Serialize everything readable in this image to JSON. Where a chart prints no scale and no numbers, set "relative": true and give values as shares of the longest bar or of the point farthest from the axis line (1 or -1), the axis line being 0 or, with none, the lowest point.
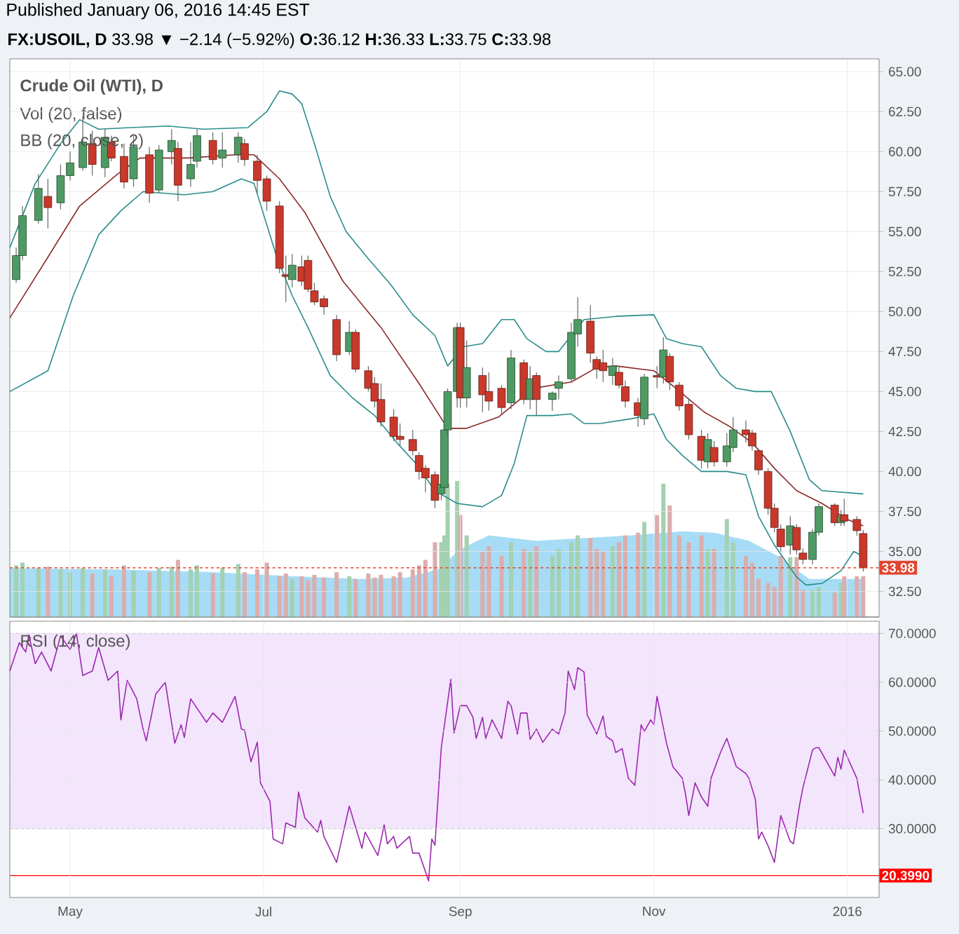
{
  "chart_data": [
    {
      "type": "candlestick",
      "title": "Published January 06, 2016 14:45 EST",
      "subtitle": "**FX:USOIL, D** 33.98 ▼ −2.14 (−5.92%) **O:**36.12 **H:**36.33 **L:**33.75 **C:**33.98",
      "x": [
        "2015-04-14",
        "2015-04-16",
        "2015-04-21",
        "2015-04-24",
        "2015-04-28",
        "2015-05-01",
        "2015-05-05",
        "2015-05-08",
        "2015-05-12",
        "2015-05-14",
        "2015-05-18",
        "2015-05-21",
        "2015-05-26",
        "2015-05-29",
        "2015-06-02",
        "2015-06-04",
        "2015-06-08",
        "2015-06-10",
        "2015-06-15",
        "2015-06-18",
        "2015-06-23",
        "2015-06-25",
        "2015-06-29",
        "2015-07-02",
        "2015-07-06",
        "2015-07-08",
        "2015-07-10",
        "2015-07-13",
        "2015-07-15",
        "2015-07-17",
        "2015-07-20",
        "2015-07-24",
        "2015-07-28",
        "2015-07-30",
        "2015-08-03",
        "2015-08-05",
        "2015-08-07",
        "2015-08-11",
        "2015-08-13",
        "2015-08-17",
        "2015-08-19",
        "2015-08-21",
        "2015-08-24",
        "2015-08-26",
        "2015-08-27",
        "2015-08-28",
        "2015-08-31",
        "2015-09-01",
        "2015-09-03",
        "2015-09-08",
        "2015-09-10",
        "2015-09-14",
        "2015-09-17",
        "2015-09-21",
        "2015-09-23",
        "2015-09-25",
        "2015-09-30",
        "2015-10-02",
        "2015-10-06",
        "2015-10-08",
        "2015-10-12",
        "2015-10-14",
        "2015-10-16",
        "2015-10-19",
        "2015-10-21",
        "2015-10-23",
        "2015-10-27",
        "2015-10-29",
        "2015-11-02",
        "2015-11-04",
        "2015-11-06",
        "2015-11-09",
        "2015-11-12",
        "2015-11-16",
        "2015-11-18",
        "2015-11-20",
        "2015-11-24",
        "2015-11-26",
        "2015-11-30",
        "2015-12-02",
        "2015-12-04",
        "2015-12-07",
        "2015-12-09",
        "2015-12-11",
        "2015-12-14",
        "2015-12-16",
        "2015-12-18",
        "2015-12-21",
        "2015-12-23",
        "2015-12-28",
        "2015-12-30",
        "2015-12-31",
        "2016-01-04",
        "2016-01-06"
      ],
      "ohlc": [
        [
          52.0,
          54.0,
          51.8,
          53.5
        ],
        [
          53.5,
          56.6,
          53.2,
          56.0
        ],
        [
          55.7,
          58.6,
          55.5,
          57.7
        ],
        [
          57.2,
          58.3,
          55.2,
          56.5
        ],
        [
          56.8,
          59.2,
          56.4,
          58.5
        ],
        [
          58.5,
          60.0,
          58.2,
          59.3
        ],
        [
          59.0,
          62.2,
          58.8,
          60.6
        ],
        [
          60.5,
          61.3,
          58.5,
          59.2
        ],
        [
          59.0,
          61.4,
          58.4,
          60.9
        ],
        [
          60.6,
          61.0,
          59.4,
          59.6
        ],
        [
          59.7,
          60.5,
          57.7,
          58.1
        ],
        [
          58.3,
          61.0,
          57.8,
          60.3
        ],
        [
          59.8,
          60.3,
          56.8,
          57.4
        ],
        [
          57.6,
          60.4,
          57.4,
          60.1
        ],
        [
          60.0,
          61.4,
          59.2,
          60.7
        ],
        [
          60.2,
          60.6,
          56.9,
          57.9
        ],
        [
          58.3,
          60.6,
          57.8,
          59.2
        ],
        [
          59.4,
          61.4,
          59.0,
          61.0
        ],
        [
          60.7,
          61.2,
          59.2,
          59.5
        ],
        [
          59.6,
          61.2,
          59.0,
          60.1
        ],
        [
          59.8,
          61.2,
          59.3,
          60.9
        ],
        [
          60.5,
          60.8,
          59.1,
          59.5
        ],
        [
          59.4,
          59.8,
          57.4,
          58.2
        ],
        [
          58.3,
          58.5,
          56.3,
          56.9
        ],
        [
          56.6,
          56.9,
          52.4,
          52.7
        ],
        [
          52.3,
          53.5,
          50.6,
          52.2
        ],
        [
          52.0,
          53.6,
          51.5,
          52.9
        ],
        [
          52.8,
          53.5,
          51.6,
          51.9
        ],
        [
          53.2,
          53.5,
          51.2,
          51.4
        ],
        [
          51.3,
          51.8,
          50.4,
          50.6
        ],
        [
          50.8,
          51.0,
          49.8,
          50.3
        ],
        [
          49.5,
          49.8,
          46.9,
          47.3
        ],
        [
          47.5,
          49.4,
          47.3,
          48.7
        ],
        [
          48.7,
          48.9,
          46.2,
          46.4
        ],
        [
          46.3,
          46.6,
          45.0,
          45.2
        ],
        [
          45.5,
          45.9,
          44.0,
          44.4
        ],
        [
          44.5,
          45.5,
          42.8,
          43.1
        ],
        [
          43.4,
          43.9,
          41.9,
          42.2
        ],
        [
          42.2,
          43.0,
          41.6,
          42.0
        ],
        [
          42.0,
          42.6,
          41.0,
          41.3
        ],
        [
          41.0,
          41.2,
          39.5,
          40.0
        ],
        [
          40.2,
          40.4,
          38.7,
          39.6
        ],
        [
          39.8,
          40.0,
          37.7,
          38.2
        ],
        [
          38.6,
          39.6,
          38.2,
          39.2
        ],
        [
          39.0,
          43.0,
          38.8,
          42.6
        ],
        [
          42.6,
          45.2,
          42.2,
          45.0
        ],
        [
          45.0,
          49.3,
          44.0,
          49.0
        ],
        [
          49.0,
          49.3,
          44.0,
          44.6
        ],
        [
          44.6,
          48.2,
          44.0,
          46.5
        ],
        [
          46.0,
          46.5,
          43.7,
          44.8
        ],
        [
          45.0,
          46.2,
          43.8,
          44.4
        ],
        [
          45.2,
          45.4,
          43.6,
          44.0
        ],
        [
          44.3,
          47.6,
          43.9,
          47.1
        ],
        [
          46.8,
          47.0,
          44.2,
          44.5
        ],
        [
          44.5,
          46.6,
          43.9,
          45.8
        ],
        [
          46.0,
          46.2,
          43.5,
          44.5
        ],
        [
          44.5,
          45.0,
          43.8,
          44.9
        ],
        [
          45.2,
          46.0,
          44.5,
          45.6
        ],
        [
          45.8,
          49.3,
          45.6,
          48.7
        ],
        [
          48.6,
          50.9,
          47.8,
          49.5
        ],
        [
          49.4,
          50.4,
          46.8,
          47.4
        ],
        [
          47.0,
          47.2,
          45.8,
          46.4
        ],
        [
          46.8,
          47.6,
          45.6,
          46.3
        ],
        [
          46.0,
          47.1,
          45.4,
          46.6
        ],
        [
          46.2,
          46.6,
          45.2,
          45.4
        ],
        [
          45.3,
          45.7,
          44.0,
          44.4
        ],
        [
          44.3,
          44.6,
          42.8,
          43.5
        ],
        [
          43.3,
          46.1,
          42.9,
          45.9
        ],
        [
          46.0,
          46.6,
          45.2,
          45.9
        ],
        [
          45.9,
          48.4,
          45.5,
          47.6
        ],
        [
          47.2,
          47.4,
          45.1,
          45.6
        ],
        [
          45.4,
          45.6,
          43.8,
          44.1
        ],
        [
          44.2,
          44.6,
          42.0,
          42.3
        ],
        [
          42.2,
          42.6,
          40.2,
          40.7
        ],
        [
          40.6,
          42.4,
          40.2,
          42.0
        ],
        [
          41.5,
          41.9,
          40.3,
          40.6
        ],
        [
          40.6,
          42.4,
          40.3,
          41.6
        ],
        [
          41.5,
          43.4,
          41.2,
          42.6
        ],
        [
          42.6,
          43.2,
          41.8,
          42.3
        ],
        [
          42.4,
          42.6,
          41.3,
          41.6
        ],
        [
          41.3,
          41.4,
          39.8,
          40.1
        ],
        [
          40.0,
          40.2,
          37.3,
          37.7
        ],
        [
          37.7,
          38.0,
          36.2,
          36.5
        ],
        [
          36.4,
          36.7,
          35.0,
          35.3
        ],
        [
          35.4,
          37.2,
          34.8,
          36.6
        ],
        [
          36.5,
          36.7,
          34.8,
          35.1
        ],
        [
          34.9,
          35.2,
          34.2,
          34.5
        ],
        [
          34.5,
          36.4,
          34.2,
          36.2
        ],
        [
          36.2,
          38.0,
          36.0,
          37.8
        ],
        [
          37.9,
          38.0,
          36.6,
          36.8
        ],
        [
          36.8,
          37.6,
          36.6,
          37.2
        ],
        [
          37.3,
          38.3,
          36.6,
          36.9
        ],
        [
          37.0,
          37.2,
          36.0,
          36.3
        ],
        [
          36.12,
          36.33,
          33.75,
          33.98
        ]
      ],
      "series": [
        {
          "type": "line",
          "color": "#2a8c8c",
          "x": [
            "2015-04-12",
            "2015-04-20",
            "2015-04-28",
            "2015-05-04",
            "2015-05-10",
            "2015-05-20",
            "2015-06-01",
            "2015-06-12",
            "2015-06-26",
            "2015-07-02",
            "2015-07-06",
            "2015-07-10",
            "2015-07-13",
            "2015-07-17",
            "2015-07-22",
            "2015-07-27",
            "2015-08-03",
            "2015-08-10",
            "2015-08-17",
            "2015-08-24",
            "2015-08-28",
            "2015-09-02",
            "2015-09-08",
            "2015-09-14",
            "2015-09-18",
            "2015-09-22",
            "2015-09-28",
            "2015-10-02",
            "2015-10-10",
            "2015-10-20",
            "2015-11-01",
            "2015-11-05",
            "2015-11-10",
            "2015-11-16",
            "2015-11-22",
            "2015-11-27",
            "2015-12-03",
            "2015-12-08",
            "2015-12-14",
            "2015-12-20",
            "2015-12-24",
            "2016-01-06"
          ],
          "values": [
            54.0,
            58.0,
            60.5,
            62.0,
            61.4,
            61.5,
            61.6,
            61.4,
            61.5,
            62.5,
            63.8,
            63.6,
            63.0,
            60.5,
            57.2,
            55.0,
            53.3,
            51.7,
            49.8,
            48.5,
            46.6,
            47.8,
            48.0,
            49.5,
            49.5,
            48.3,
            47.5,
            47.5,
            49.5,
            49.7,
            49.8,
            48.3,
            48.0,
            47.8,
            46.0,
            45.2,
            45.0,
            45.0,
            42.5,
            39.5,
            38.8,
            38.6
          ]
        },
        {
          "type": "line",
          "color": "#8b2a2a",
          "x": [
            "2015-04-12",
            "2015-04-24",
            "2015-05-04",
            "2015-05-16",
            "2015-05-23",
            "2015-06-07",
            "2015-06-22",
            "2015-06-28",
            "2015-07-06",
            "2015-07-14",
            "2015-07-26",
            "2015-08-07",
            "2015-08-19",
            "2015-08-28",
            "2015-09-03",
            "2015-09-13",
            "2015-09-24",
            "2015-10-06",
            "2015-10-14",
            "2015-10-20",
            "2015-11-01",
            "2015-11-08",
            "2015-11-17",
            "2015-11-25",
            "2015-12-02",
            "2015-12-09",
            "2015-12-16",
            "2015-12-24",
            "2016-01-01",
            "2016-01-06"
          ],
          "values": [
            49.6,
            53.4,
            56.6,
            58.6,
            59.6,
            59.6,
            59.8,
            59.8,
            58.3,
            56.2,
            51.9,
            49.0,
            45.5,
            42.7,
            42.7,
            43.4,
            45.2,
            45.6,
            46.5,
            46.6,
            46.3,
            45.2,
            43.7,
            42.8,
            41.8,
            40.2,
            38.8,
            38.0,
            37.0,
            36.6
          ]
        },
        {
          "type": "line",
          "color": "#2a8c8c",
          "x": [
            "2015-04-12",
            "2015-04-24",
            "2015-05-02",
            "2015-05-10",
            "2015-05-17",
            "2015-05-24",
            "2015-06-06",
            "2015-06-15",
            "2015-06-24",
            "2015-06-28",
            "2015-07-05",
            "2015-07-10",
            "2015-07-15",
            "2015-07-22",
            "2015-07-29",
            "2015-08-05",
            "2015-08-12",
            "2015-08-18",
            "2015-08-24",
            "2015-08-31",
            "2015-09-08",
            "2015-09-14",
            "2015-09-18",
            "2015-09-22",
            "2015-09-30",
            "2015-10-06",
            "2015-10-10",
            "2015-10-15",
            "2015-10-25",
            "2015-11-01",
            "2015-11-05",
            "2015-11-10",
            "2015-11-16",
            "2015-11-24",
            "2015-11-30",
            "2015-12-04",
            "2015-12-09",
            "2015-12-16",
            "2015-12-19",
            "2015-12-24",
            "2015-12-30",
            "2016-01-03",
            "2016-01-06"
          ],
          "values": [
            45.0,
            46.3,
            51.0,
            54.8,
            56.3,
            57.5,
            57.3,
            57.5,
            58.3,
            58.0,
            53.5,
            51.0,
            49.0,
            46.0,
            44.6,
            43.5,
            41.8,
            40.5,
            38.8,
            38.0,
            37.8,
            38.5,
            40.5,
            43.5,
            43.5,
            43.6,
            43.0,
            43.0,
            43.3,
            43.6,
            42.0,
            41.0,
            40.0,
            40.0,
            39.8,
            37.2,
            35.4,
            33.4,
            32.9,
            33.0,
            33.8,
            35.0,
            34.7
          ]
        }
      ],
      "annotations": [
        "Crude Oil (WTI), D",
        "BB (20, close, 2)"
      ],
      "ref_lines": [
        {
          "axis": "y",
          "value": 33.98,
          "label": "33.98",
          "color": "#e0452f",
          "line_style": "dashed"
        }
      ],
      "xlim": [
        "2015-04-12",
        "2016-01-11"
      ],
      "ylim": [
        30.9,
        65.8
      ],
      "xticks": [
        {
          "value": "2015-05-01",
          "label": null
        },
        {
          "value": "2015-07-01",
          "label": null
        },
        {
          "value": "2015-09-01",
          "label": null
        },
        {
          "value": "2015-11-01",
          "label": null
        },
        {
          "value": "2016-01-01",
          "label": null
        }
      ],
      "yticks": [
        {
          "value": 32.5,
          "label": "32.50"
        },
        {
          "value": 35,
          "label": "35.00"
        },
        {
          "value": 37.5,
          "label": "37.50"
        },
        {
          "value": 40,
          "label": "40.00"
        },
        {
          "value": 42.5,
          "label": "42.50"
        },
        {
          "value": 45,
          "label": "45.00"
        },
        {
          "value": 47.5,
          "label": "47.50"
        },
        {
          "value": 50,
          "label": "50.00"
        },
        {
          "value": 52.5,
          "label": "52.50"
        },
        {
          "value": 55,
          "label": "55.00"
        },
        {
          "value": 57.5,
          "label": "57.50"
        },
        {
          "value": 60,
          "label": "60.00"
        },
        {
          "value": 62.5,
          "label": "62.50"
        },
        {
          "value": 65,
          "label": "65.00"
        }
      ],
      "grid": true,
      "tick_labels": "y"
    },
    {
      "type": "bar",
      "relative": true,
      "x": [
        "2015-04-14",
        "2015-04-16",
        "2015-04-21",
        "2015-04-24",
        "2015-04-28",
        "2015-05-01",
        "2015-05-05",
        "2015-05-08",
        "2015-05-12",
        "2015-05-14",
        "2015-05-18",
        "2015-05-21",
        "2015-05-26",
        "2015-05-29",
        "2015-06-02",
        "2015-06-04",
        "2015-06-08",
        "2015-06-10",
        "2015-06-15",
        "2015-06-18",
        "2015-06-23",
        "2015-06-25",
        "2015-06-29",
        "2015-07-02",
        "2015-07-06",
        "2015-07-08",
        "2015-07-10",
        "2015-07-13",
        "2015-07-15",
        "2015-07-17",
        "2015-07-20",
        "2015-07-24",
        "2015-07-28",
        "2015-07-30",
        "2015-08-03",
        "2015-08-05",
        "2015-08-07",
        "2015-08-11",
        "2015-08-13",
        "2015-08-17",
        "2015-08-19",
        "2015-08-21",
        "2015-08-24",
        "2015-08-26",
        "2015-08-27",
        "2015-08-28",
        "2015-08-31",
        "2015-09-01",
        "2015-09-03",
        "2015-09-08",
        "2015-09-10",
        "2015-09-14",
        "2015-09-17",
        "2015-09-21",
        "2015-09-23",
        "2015-09-25",
        "2015-09-30",
        "2015-10-02",
        "2015-10-06",
        "2015-10-08",
        "2015-10-12",
        "2015-10-14",
        "2015-10-16",
        "2015-10-19",
        "2015-10-21",
        "2015-10-23",
        "2015-10-27",
        "2015-10-29",
        "2015-11-02",
        "2015-11-04",
        "2015-11-06",
        "2015-11-09",
        "2015-11-12",
        "2015-11-16",
        "2015-11-18",
        "2015-11-20",
        "2015-11-24",
        "2015-11-26",
        "2015-11-30",
        "2015-12-02",
        "2015-12-04",
        "2015-12-07",
        "2015-12-09",
        "2015-12-11",
        "2015-12-14",
        "2015-12-16",
        "2015-12-18",
        "2015-12-21",
        "2015-12-23",
        "2015-12-28",
        "2015-12-30",
        "2015-12-31",
        "2016-01-04",
        "2016-01-06"
      ],
      "values": [
        0.38,
        0.4,
        0.36,
        0.37,
        0.35,
        0.33,
        0.36,
        0.32,
        0.35,
        0.3,
        0.38,
        0.34,
        0.33,
        0.36,
        0.37,
        0.42,
        0.35,
        0.38,
        0.32,
        0.36,
        0.39,
        0.33,
        0.35,
        0.4,
        0.3,
        0.32,
        0.28,
        0.3,
        0.27,
        0.31,
        0.29,
        0.33,
        0.3,
        0.28,
        0.32,
        0.29,
        0.31,
        0.3,
        0.33,
        0.35,
        0.38,
        0.42,
        0.55,
        0.55,
        0.6,
        0.98,
        1.0,
        0.75,
        0.6,
        0.48,
        0.52,
        0.45,
        0.55,
        0.5,
        0.48,
        0.52,
        0.45,
        0.5,
        0.55,
        0.6,
        0.58,
        0.5,
        0.48,
        0.52,
        0.55,
        0.6,
        0.62,
        0.7,
        0.75,
        0.98,
        0.82,
        0.6,
        0.55,
        0.6,
        0.5,
        0.5,
        0.72,
        0.55,
        0.45,
        0.4,
        0.28,
        0.25,
        0.22,
        0.45,
        0.44,
        0.44,
        0.2,
        0.2,
        0.22,
        0.18,
        0.25,
        0.3,
        0.3,
        0.3
      ],
      "colors": [
        "#a3d1b1",
        "#a3d1b1",
        "#a3d1b1",
        "#dcadad",
        "#a3d1b1",
        "#a3d1b1",
        "#a3d1b1",
        "#dcadad",
        "#a3d1b1",
        "#dcadad",
        "#dcadad",
        "#a3d1b1",
        "#dcadad",
        "#a3d1b1",
        "#a3d1b1",
        "#dcadad",
        "#a3d1b1",
        "#a3d1b1",
        "#dcadad",
        "#a3d1b1",
        "#a3d1b1",
        "#dcadad",
        "#dcadad",
        "#dcadad",
        "#dcadad",
        "#dcadad",
        "#a3d1b1",
        "#dcadad",
        "#dcadad",
        "#dcadad",
        "#dcadad",
        "#dcadad",
        "#a3d1b1",
        "#dcadad",
        "#dcadad",
        "#dcadad",
        "#dcadad",
        "#dcadad",
        "#dcadad",
        "#dcadad",
        "#dcadad",
        "#dcadad",
        "#dcadad",
        "#a3d1b1",
        "#a3d1b1",
        "#a3d1b1",
        "#a3d1b1",
        "#dcadad",
        "#a3d1b1",
        "#dcadad",
        "#dcadad",
        "#dcadad",
        "#a3d1b1",
        "#dcadad",
        "#a3d1b1",
        "#dcadad",
        "#a3d1b1",
        "#a3d1b1",
        "#a3d1b1",
        "#a3d1b1",
        "#dcadad",
        "#dcadad",
        "#dcadad",
        "#a3d1b1",
        "#dcadad",
        "#dcadad",
        "#dcadad",
        "#a3d1b1",
        "#dcadad",
        "#a3d1b1",
        "#dcadad",
        "#dcadad",
        "#dcadad",
        "#dcadad",
        "#a3d1b1",
        "#dcadad",
        "#a3d1b1",
        "#a3d1b1",
        "#dcadad",
        "#dcadad",
        "#dcadad",
        "#dcadad",
        "#dcadad",
        "#dcadad",
        "#a3d1b1",
        "#dcadad",
        "#dcadad",
        "#a3d1b1",
        "#a3d1b1",
        "#dcadad",
        "#a3d1b1",
        "#dcadad",
        "#dcadad",
        "#dcadad"
      ],
      "series": [
        {
          "type": "area",
          "color": "#a6dcf5",
          "x": [
            "2015-04-12",
            "2015-05-15",
            "2015-06-15",
            "2015-07-10",
            "2015-07-31",
            "2015-08-15",
            "2015-08-25",
            "2015-09-01",
            "2015-09-10",
            "2015-09-25",
            "2015-10-10",
            "2015-10-25",
            "2015-11-10",
            "2015-11-20",
            "2015-12-01",
            "2015-12-10",
            "2015-12-20",
            "2016-01-06"
          ],
          "values": [
            0.36,
            0.35,
            0.33,
            0.3,
            0.28,
            0.29,
            0.35,
            0.5,
            0.6,
            0.56,
            0.58,
            0.6,
            0.63,
            0.62,
            0.56,
            0.45,
            0.28,
            0.28
          ]
        }
      ],
      "annotations": [
        "Vol (20, false)"
      ],
      "xlim": [
        "2015-04-12",
        "2016-01-11"
      ],
      "tick_labels": false
    },
    {
      "type": "line",
      "color": "#9c27b0",
      "x": [
        "2015-04-12",
        "2015-04-15",
        "2015-04-17",
        "2015-04-18",
        "2015-04-20",
        "2015-04-22",
        "2015-04-25",
        "2015-04-28",
        "2015-05-01",
        "2015-05-03",
        "2015-05-05",
        "2015-05-08",
        "2015-05-10",
        "2015-05-13",
        "2015-05-16",
        "2015-05-17",
        "2015-05-19",
        "2015-05-22",
        "2015-05-24",
        "2015-05-25",
        "2015-05-28",
        "2015-05-31",
        "2015-06-03",
        "2015-06-05",
        "2015-06-06",
        "2015-06-08",
        "2015-06-13",
        "2015-06-15",
        "2015-06-18",
        "2015-06-22",
        "2015-06-24",
        "2015-06-25",
        "2015-06-27",
        "2015-06-29",
        "2015-06-30",
        "2015-07-03",
        "2015-07-04",
        "2015-07-07",
        "2015-07-08",
        "2015-07-11",
        "2015-07-12",
        "2015-07-14",
        "2015-07-18",
        "2015-07-19",
        "2015-07-20",
        "2015-07-24",
        "2015-07-28",
        "2015-08-01",
        "2015-08-02",
        "2015-08-06",
        "2015-08-08",
        "2015-08-09",
        "2015-08-11",
        "2015-08-12",
        "2015-08-16",
        "2015-08-17",
        "2015-08-19",
        "2015-08-22",
        "2015-08-23",
        "2015-08-24",
        "2015-08-26",
        "2015-08-29",
        "2015-08-30",
        "2015-09-01",
        "2015-09-03",
        "2015-09-05",
        "2015-09-06",
        "2015-09-08",
        "2015-09-09",
        "2015-09-11",
        "2015-09-14",
        "2015-09-16",
        "2015-09-17",
        "2015-09-19",
        "2015-09-20",
        "2015-09-22",
        "2015-09-23",
        "2015-09-25",
        "2015-09-27",
        "2015-09-30",
        "2015-10-02",
        "2015-10-04",
        "2015-10-05",
        "2015-10-07",
        "2015-10-08",
        "2015-10-10",
        "2015-10-11",
        "2015-10-14",
        "2015-10-16",
        "2015-10-17",
        "2015-10-19",
        "2015-10-20",
        "2015-10-22",
        "2015-10-24",
        "2015-10-26",
        "2015-10-28",
        "2015-10-29",
        "2015-10-31",
        "2015-11-01",
        "2015-11-02",
        "2015-11-05",
        "2015-11-07",
        "2015-11-10",
        "2015-11-11",
        "2015-11-12",
        "2015-11-14",
        "2015-11-16",
        "2015-11-18",
        "2015-11-19",
        "2015-11-22",
        "2015-11-24",
        "2015-11-27",
        "2015-11-30",
        "2015-12-01",
        "2015-12-03",
        "2015-12-04",
        "2015-12-05",
        "2015-12-07",
        "2015-12-09",
        "2015-12-11",
        "2015-12-14",
        "2015-12-15",
        "2015-12-17",
        "2015-12-18",
        "2015-12-21",
        "2015-12-22",
        "2015-12-23",
        "2015-12-28",
        "2015-12-29",
        "2015-12-30",
        "2015-12-31",
        "2016-01-04",
        "2016-01-06"
      ],
      "values": [
        62.3,
        68.1,
        66.2,
        69.7,
        63.8,
        66.2,
        62.3,
        69.5,
        66.7,
        70.0,
        61.4,
        62.3,
        67.1,
        60.4,
        62.3,
        52.3,
        60.4,
        56.6,
        50.4,
        48.0,
        57.6,
        60.0,
        47.5,
        51.3,
        48.7,
        56.6,
        51.8,
        53.7,
        51.8,
        57.1,
        50.4,
        50.2,
        43.7,
        47.7,
        39.4,
        35.6,
        27.9,
        26.9,
        31.2,
        30.3,
        37.5,
        32.2,
        29.3,
        31.7,
        28.4,
        23.1,
        34.6,
        26.0,
        29.3,
        24.5,
        30.8,
        26.9,
        28.4,
        26.0,
        28.4,
        25.0,
        25.0,
        19.3,
        27.9,
        26.6,
        46.6,
        60.6,
        49.6,
        55.2,
        55.2,
        52.8,
        48.5,
        52.8,
        48.5,
        52.3,
        48.5,
        56.1,
        55.2,
        49.4,
        53.7,
        53.7,
        48.3,
        50.4,
        47.7,
        50.4,
        49.4,
        53.7,
        62.3,
        58.5,
        63.0,
        62.1,
        53.3,
        49.4,
        53.1,
        48.9,
        48.0,
        45.6,
        46.4,
        40.3,
        38.9,
        51.3,
        49.9,
        52.3,
        51.3,
        57.1,
        47.5,
        42.7,
        40.3,
        37.0,
        32.7,
        39.4,
        36.5,
        34.6,
        40.3,
        45.6,
        48.5,
        42.7,
        41.3,
        40.3,
        36.0,
        27.9,
        29.3,
        26.5,
        23.1,
        32.7,
        27.4,
        26.9,
        35.1,
        38.4,
        46.1,
        46.6,
        46.6,
        40.8,
        44.6,
        42.2,
        46.1,
        40.3,
        33.2
      ],
      "annotations": [
        "RSI (14, close)"
      ],
      "bands": [
        {
          "axis": "y",
          "from": 30,
          "to": 70,
          "color": "#f3e5fc"
        }
      ],
      "ref_lines": [
        {
          "axis": "y",
          "value": 20.399,
          "label": "20.3990",
          "color": "#ff0000",
          "line_style": "solid"
        }
      ],
      "xlim": [
        "2015-04-12",
        "2016-01-11"
      ],
      "ylim": [
        15.9,
        72.5
      ],
      "xticks": [
        {
          "value": "2015-05-01",
          "label": "May"
        },
        {
          "value": "2015-07-01",
          "label": "Jul"
        },
        {
          "value": "2015-09-01",
          "label": "Sep"
        },
        {
          "value": "2015-11-01",
          "label": "Nov"
        },
        {
          "value": "2016-01-01",
          "label": "2016"
        }
      ],
      "yticks": [
        {
          "value": 30,
          "label": "30.0000"
        },
        {
          "value": 40,
          "label": "40.0000"
        },
        {
          "value": 50,
          "label": "50.0000"
        },
        {
          "value": 60,
          "label": "60.0000"
        },
        {
          "value": 70,
          "label": "70.0000"
        }
      ],
      "grid": true
    }
  ]
}
